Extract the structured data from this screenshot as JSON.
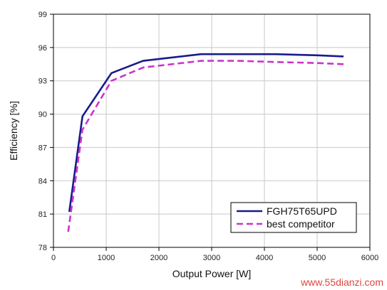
{
  "chart_data": {
    "type": "line",
    "title": "",
    "xlabel": "Output Power [W]",
    "ylabel": "Efficiency [%]",
    "xlim": [
      0,
      6000
    ],
    "ylim": [
      78,
      99
    ],
    "xticks": [
      0,
      1000,
      2000,
      3000,
      4000,
      5000,
      6000
    ],
    "yticks": [
      78,
      81,
      84,
      87,
      90,
      93,
      96,
      99
    ],
    "grid": true,
    "legend_position": "bottom-right",
    "series": [
      {
        "name": "FGH75T65UPD",
        "color": "#1a1a8c",
        "style": "solid",
        "x": [
          300,
          550,
          1100,
          1700,
          2800,
          3500,
          4200,
          5000,
          5500
        ],
        "y": [
          81.2,
          89.8,
          93.7,
          94.8,
          95.4,
          95.4,
          95.4,
          95.3,
          95.2
        ]
      },
      {
        "name": "best competitor",
        "color": "#cc33cc",
        "style": "dashed",
        "x": [
          280,
          550,
          1100,
          1700,
          2800,
          3500,
          4200,
          5000,
          5500
        ],
        "y": [
          79.4,
          88.6,
          93.0,
          94.2,
          94.8,
          94.8,
          94.7,
          94.6,
          94.5
        ]
      }
    ]
  },
  "watermark": "www.55dianzi.com"
}
